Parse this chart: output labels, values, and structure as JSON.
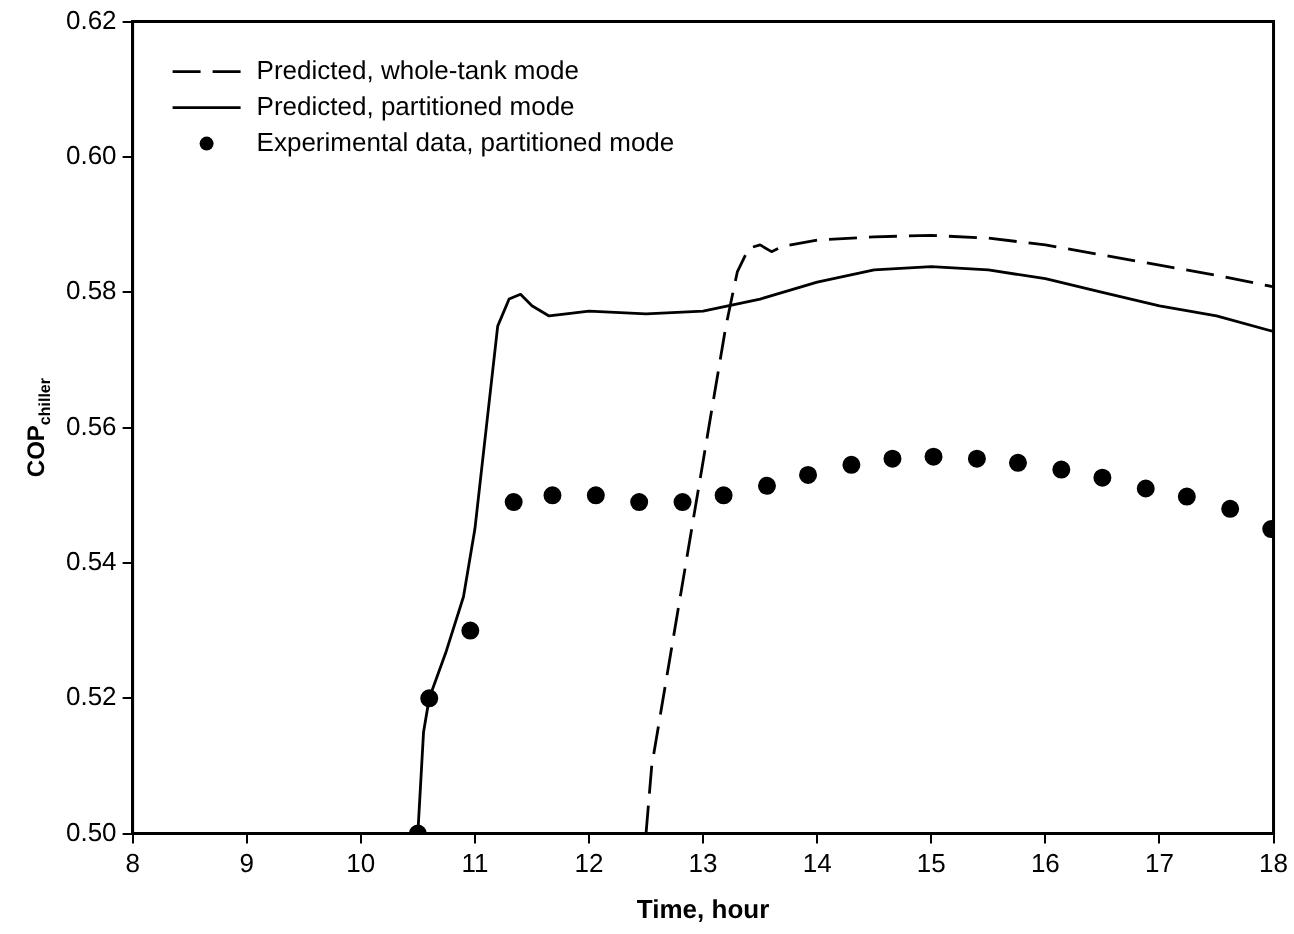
{
  "chart_data": {
    "type": "line",
    "xlabel": "Time, hour",
    "ylabel": "COP$_{chiller}$",
    "xlim": [
      8,
      18
    ],
    "xticks": [
      8,
      9,
      10,
      11,
      12,
      13,
      14,
      15,
      16,
      17,
      18
    ],
    "ylim": [
      0.5,
      0.62
    ],
    "yticks": [
      {
        "value": 0.5,
        "label": "0.50"
      },
      0.52,
      0.54,
      0.56,
      0.58,
      {
        "value": 0.6,
        "label": "0.60"
      },
      0.62
    ],
    "grid": false,
    "legend": "top left",
    "series": [
      {
        "name": "Predicted, whole-tank mode",
        "line_style": "dashed",
        "marker": "none",
        "color": "#000000",
        "x": [
          12.5,
          12.55,
          12.7,
          12.85,
          13.0,
          13.1,
          13.2,
          13.3,
          13.4,
          13.5,
          13.6,
          13.7,
          14,
          14.5,
          15,
          15.5,
          16,
          16.5,
          17,
          17.5,
          18
        ],
        "values": [
          0.5,
          0.51,
          0.525,
          0.54,
          0.555,
          0.565,
          0.575,
          0.583,
          0.5865,
          0.587,
          0.586,
          0.5868,
          0.5877,
          0.5882,
          0.5884,
          0.588,
          0.587,
          0.5855,
          0.584,
          0.5825,
          0.5808
        ]
      },
      {
        "name": "Predicted, partitioned mode",
        "line_style": "solid",
        "marker": "none",
        "color": "#000000",
        "x": [
          8,
          10.5,
          10.55,
          10.6,
          10.75,
          10.9,
          11.0,
          11.1,
          11.2,
          11.3,
          11.4,
          11.5,
          11.65,
          11.8,
          12.0,
          12.5,
          13.0,
          13.5,
          14,
          14.5,
          15,
          15.5,
          16,
          16.5,
          17,
          17.5,
          18
        ],
        "values": [
          0.5,
          0.5,
          0.515,
          0.52,
          0.527,
          0.535,
          0.545,
          0.56,
          0.575,
          0.579,
          0.5797,
          0.578,
          0.5765,
          0.5768,
          0.5772,
          0.5768,
          0.5772,
          0.579,
          0.5815,
          0.5833,
          0.5838,
          0.5833,
          0.582,
          0.58,
          0.578,
          0.5765,
          0.5742
        ]
      },
      {
        "name": "Experimental data, partitioned mode",
        "type": "scatter",
        "marker": "circle",
        "color": "#000000",
        "x": [
          10.5,
          10.6,
          10.96,
          11.34,
          11.68,
          12.06,
          12.44,
          12.82,
          13.18,
          13.56,
          13.92,
          14.3,
          14.66,
          15.02,
          15.4,
          15.76,
          16.14,
          16.5,
          16.88,
          17.24,
          17.62,
          17.98
        ],
        "values": [
          0.5,
          0.52,
          0.53,
          0.549,
          0.55,
          0.55,
          0.549,
          0.549,
          0.55,
          0.5514,
          0.553,
          0.5545,
          0.5554,
          0.5557,
          0.5554,
          0.5548,
          0.5538,
          0.5526,
          0.551,
          0.5498,
          0.548,
          0.545
        ]
      }
    ]
  }
}
